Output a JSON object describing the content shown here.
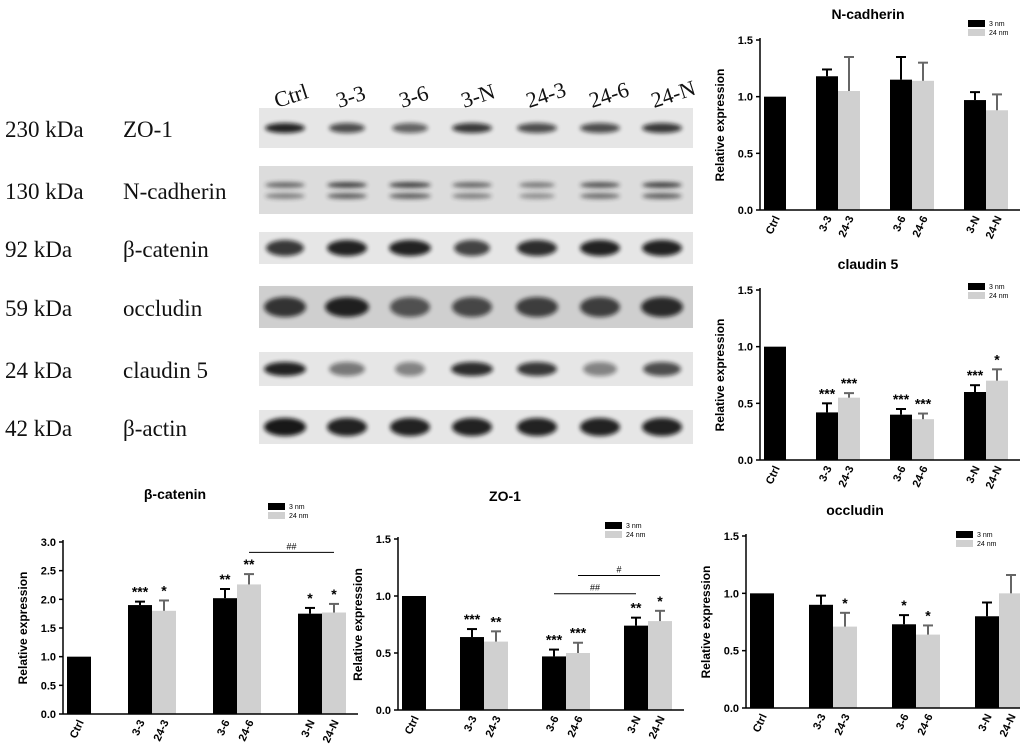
{
  "blot": {
    "lanes": [
      "Ctrl",
      "3-3",
      "3-6",
      "3-N",
      "24-3",
      "24-6",
      "24-N"
    ],
    "rows": [
      {
        "kda": "230 kDa",
        "protein": "ZO-1"
      },
      {
        "kda": "130 kDa",
        "protein": "N-cadherin"
      },
      {
        "kda": "92 kDa",
        "protein": "β-catenin"
      },
      {
        "kda": "59 kDa",
        "protein": "occludin"
      },
      {
        "kda": "24 kDa",
        "protein": "claudin 5"
      },
      {
        "kda": "42 kDa",
        "protein": "β-actin"
      }
    ]
  },
  "chart_data": [
    {
      "type": "bar",
      "title": "N-cadherin",
      "ylabel": "Relative expression",
      "ylim": [
        0,
        1.5
      ],
      "yticks": [
        "0.0",
        "0.5",
        "1.0",
        "1.5"
      ],
      "legend": [
        "3 nm",
        "24 nm"
      ],
      "legend_position": "top-right",
      "colors": {
        "ctrl": "#000000",
        "nm3": "#000000",
        "nm24": "#d0d0d0"
      },
      "groups": [
        {
          "bars": [
            {
              "label": "Ctrl",
              "series": "ctrl",
              "value": 1.0,
              "err": 0,
              "mark": ""
            }
          ]
        },
        {
          "bars": [
            {
              "label": "3-3",
              "series": "nm3",
              "value": 1.18,
              "err": 0.06,
              "mark": ""
            },
            {
              "label": "24-3",
              "series": "nm24",
              "value": 1.05,
              "err": 0.3,
              "mark": ""
            }
          ]
        },
        {
          "bars": [
            {
              "label": "3-6",
              "series": "nm3",
              "value": 1.15,
              "err": 0.2,
              "mark": ""
            },
            {
              "label": "24-6",
              "series": "nm24",
              "value": 1.14,
              "err": 0.16,
              "mark": ""
            }
          ]
        },
        {
          "bars": [
            {
              "label": "3-N",
              "series": "nm3",
              "value": 0.97,
              "err": 0.07,
              "mark": ""
            },
            {
              "label": "24-N",
              "series": "nm24",
              "value": 0.88,
              "err": 0.14,
              "mark": ""
            }
          ]
        }
      ],
      "brackets": []
    },
    {
      "type": "bar",
      "title": "claudin 5",
      "ylabel": "Relative expression",
      "ylim": [
        0,
        1.5
      ],
      "yticks": [
        "0.0",
        "0.5",
        "1.0",
        "1.5"
      ],
      "legend": [
        "3 nm",
        "24 nm"
      ],
      "legend_position": "top-right",
      "colors": {
        "ctrl": "#000000",
        "nm3": "#000000",
        "nm24": "#d0d0d0"
      },
      "groups": [
        {
          "bars": [
            {
              "label": "Ctrl",
              "series": "ctrl",
              "value": 1.0,
              "err": 0,
              "mark": ""
            }
          ]
        },
        {
          "bars": [
            {
              "label": "3-3",
              "series": "nm3",
              "value": 0.42,
              "err": 0.08,
              "mark": "***"
            },
            {
              "label": "24-3",
              "series": "nm24",
              "value": 0.55,
              "err": 0.04,
              "mark": "***"
            }
          ]
        },
        {
          "bars": [
            {
              "label": "3-6",
              "series": "nm3",
              "value": 0.4,
              "err": 0.05,
              "mark": "***"
            },
            {
              "label": "24-6",
              "series": "nm24",
              "value": 0.36,
              "err": 0.05,
              "mark": "***"
            }
          ]
        },
        {
          "bars": [
            {
              "label": "3-N",
              "series": "nm3",
              "value": 0.6,
              "err": 0.06,
              "mark": "***"
            },
            {
              "label": "24-N",
              "series": "nm24",
              "value": 0.7,
              "err": 0.1,
              "mark": "*"
            }
          ]
        }
      ],
      "brackets": []
    },
    {
      "type": "bar",
      "title": "β-catenin",
      "ylabel": "Relative expression",
      "ylim": [
        0,
        3.0
      ],
      "yticks": [
        "0.0",
        "0.5",
        "1.0",
        "1.5",
        "2.0",
        "2.5",
        "3.0"
      ],
      "legend": [
        "3 nm",
        "24 nm"
      ],
      "legend_position": "top-right",
      "colors": {
        "ctrl": "#000000",
        "nm3": "#000000",
        "nm24": "#d0d0d0"
      },
      "groups": [
        {
          "bars": [
            {
              "label": "Ctrl",
              "series": "ctrl",
              "value": 1.0,
              "err": 0,
              "mark": ""
            }
          ]
        },
        {
          "bars": [
            {
              "label": "3-3",
              "series": "nm3",
              "value": 1.9,
              "err": 0.06,
              "mark": "***"
            },
            {
              "label": "24-3",
              "series": "nm24",
              "value": 1.8,
              "err": 0.18,
              "mark": "*"
            }
          ]
        },
        {
          "bars": [
            {
              "label": "3-6",
              "series": "nm3",
              "value": 2.02,
              "err": 0.16,
              "mark": "**"
            },
            {
              "label": "24-6",
              "series": "nm24",
              "value": 2.26,
              "err": 0.18,
              "mark": "**"
            }
          ]
        },
        {
          "bars": [
            {
              "label": "3-N",
              "series": "nm3",
              "value": 1.75,
              "err": 0.1,
              "mark": "*"
            },
            {
              "label": "24-N",
              "series": "nm24",
              "value": 1.77,
              "err": 0.15,
              "mark": "*"
            }
          ]
        }
      ],
      "brackets": [
        {
          "from": "24-6",
          "to": "24-N",
          "y": 2.82,
          "label": "##"
        }
      ]
    },
    {
      "type": "bar",
      "title": "ZO-1",
      "ylabel": "Relative expression",
      "ylim": [
        0,
        1.5
      ],
      "yticks": [
        "0.0",
        "0.5",
        "1.0",
        "1.5"
      ],
      "legend": [
        "3 nm",
        "24 nm"
      ],
      "legend_position": "top-right",
      "colors": {
        "ctrl": "#000000",
        "nm3": "#000000",
        "nm24": "#d0d0d0"
      },
      "groups": [
        {
          "bars": [
            {
              "label": "Ctrl",
              "series": "ctrl",
              "value": 1.0,
              "err": 0,
              "mark": ""
            }
          ]
        },
        {
          "bars": [
            {
              "label": "3-3",
              "series": "nm3",
              "value": 0.64,
              "err": 0.07,
              "mark": "***"
            },
            {
              "label": "24-3",
              "series": "nm24",
              "value": 0.6,
              "err": 0.09,
              "mark": "**"
            }
          ]
        },
        {
          "bars": [
            {
              "label": "3-6",
              "series": "nm3",
              "value": 0.47,
              "err": 0.06,
              "mark": "***"
            },
            {
              "label": "24-6",
              "series": "nm24",
              "value": 0.5,
              "err": 0.09,
              "mark": "***"
            }
          ]
        },
        {
          "bars": [
            {
              "label": "3-N",
              "series": "nm3",
              "value": 0.74,
              "err": 0.07,
              "mark": "**"
            },
            {
              "label": "24-N",
              "series": "nm24",
              "value": 0.78,
              "err": 0.09,
              "mark": "*"
            }
          ]
        }
      ],
      "brackets": [
        {
          "from": "3-6",
          "to": "3-N",
          "y": 1.02,
          "label": "##"
        },
        {
          "from": "24-6",
          "to": "24-N",
          "y": 1.18,
          "label": "#"
        }
      ]
    },
    {
      "type": "bar",
      "title": "occludin",
      "ylabel": "Relative expression",
      "ylim": [
        0,
        1.5
      ],
      "yticks": [
        "0.0",
        "0.5",
        "1.0",
        "1.5"
      ],
      "legend": [
        "3 nm",
        "24 nm"
      ],
      "legend_position": "top-right",
      "colors": {
        "ctrl": "#000000",
        "nm3": "#000000",
        "nm24": "#d0d0d0"
      },
      "groups": [
        {
          "bars": [
            {
              "label": "Ctrl",
              "series": "ctrl",
              "value": 1.0,
              "err": 0,
              "mark": ""
            }
          ]
        },
        {
          "bars": [
            {
              "label": "3-3",
              "series": "nm3",
              "value": 0.9,
              "err": 0.08,
              "mark": ""
            },
            {
              "label": "24-3",
              "series": "nm24",
              "value": 0.71,
              "err": 0.12,
              "mark": "*"
            }
          ]
        },
        {
          "bars": [
            {
              "label": "3-6",
              "series": "nm3",
              "value": 0.73,
              "err": 0.08,
              "mark": "*"
            },
            {
              "label": "24-6",
              "series": "nm24",
              "value": 0.64,
              "err": 0.08,
              "mark": "*"
            }
          ]
        },
        {
          "bars": [
            {
              "label": "3-N",
              "series": "nm3",
              "value": 0.8,
              "err": 0.12,
              "mark": ""
            },
            {
              "label": "24-N",
              "series": "nm24",
              "value": 1.0,
              "err": 0.16,
              "mark": ""
            }
          ]
        }
      ],
      "brackets": []
    }
  ]
}
